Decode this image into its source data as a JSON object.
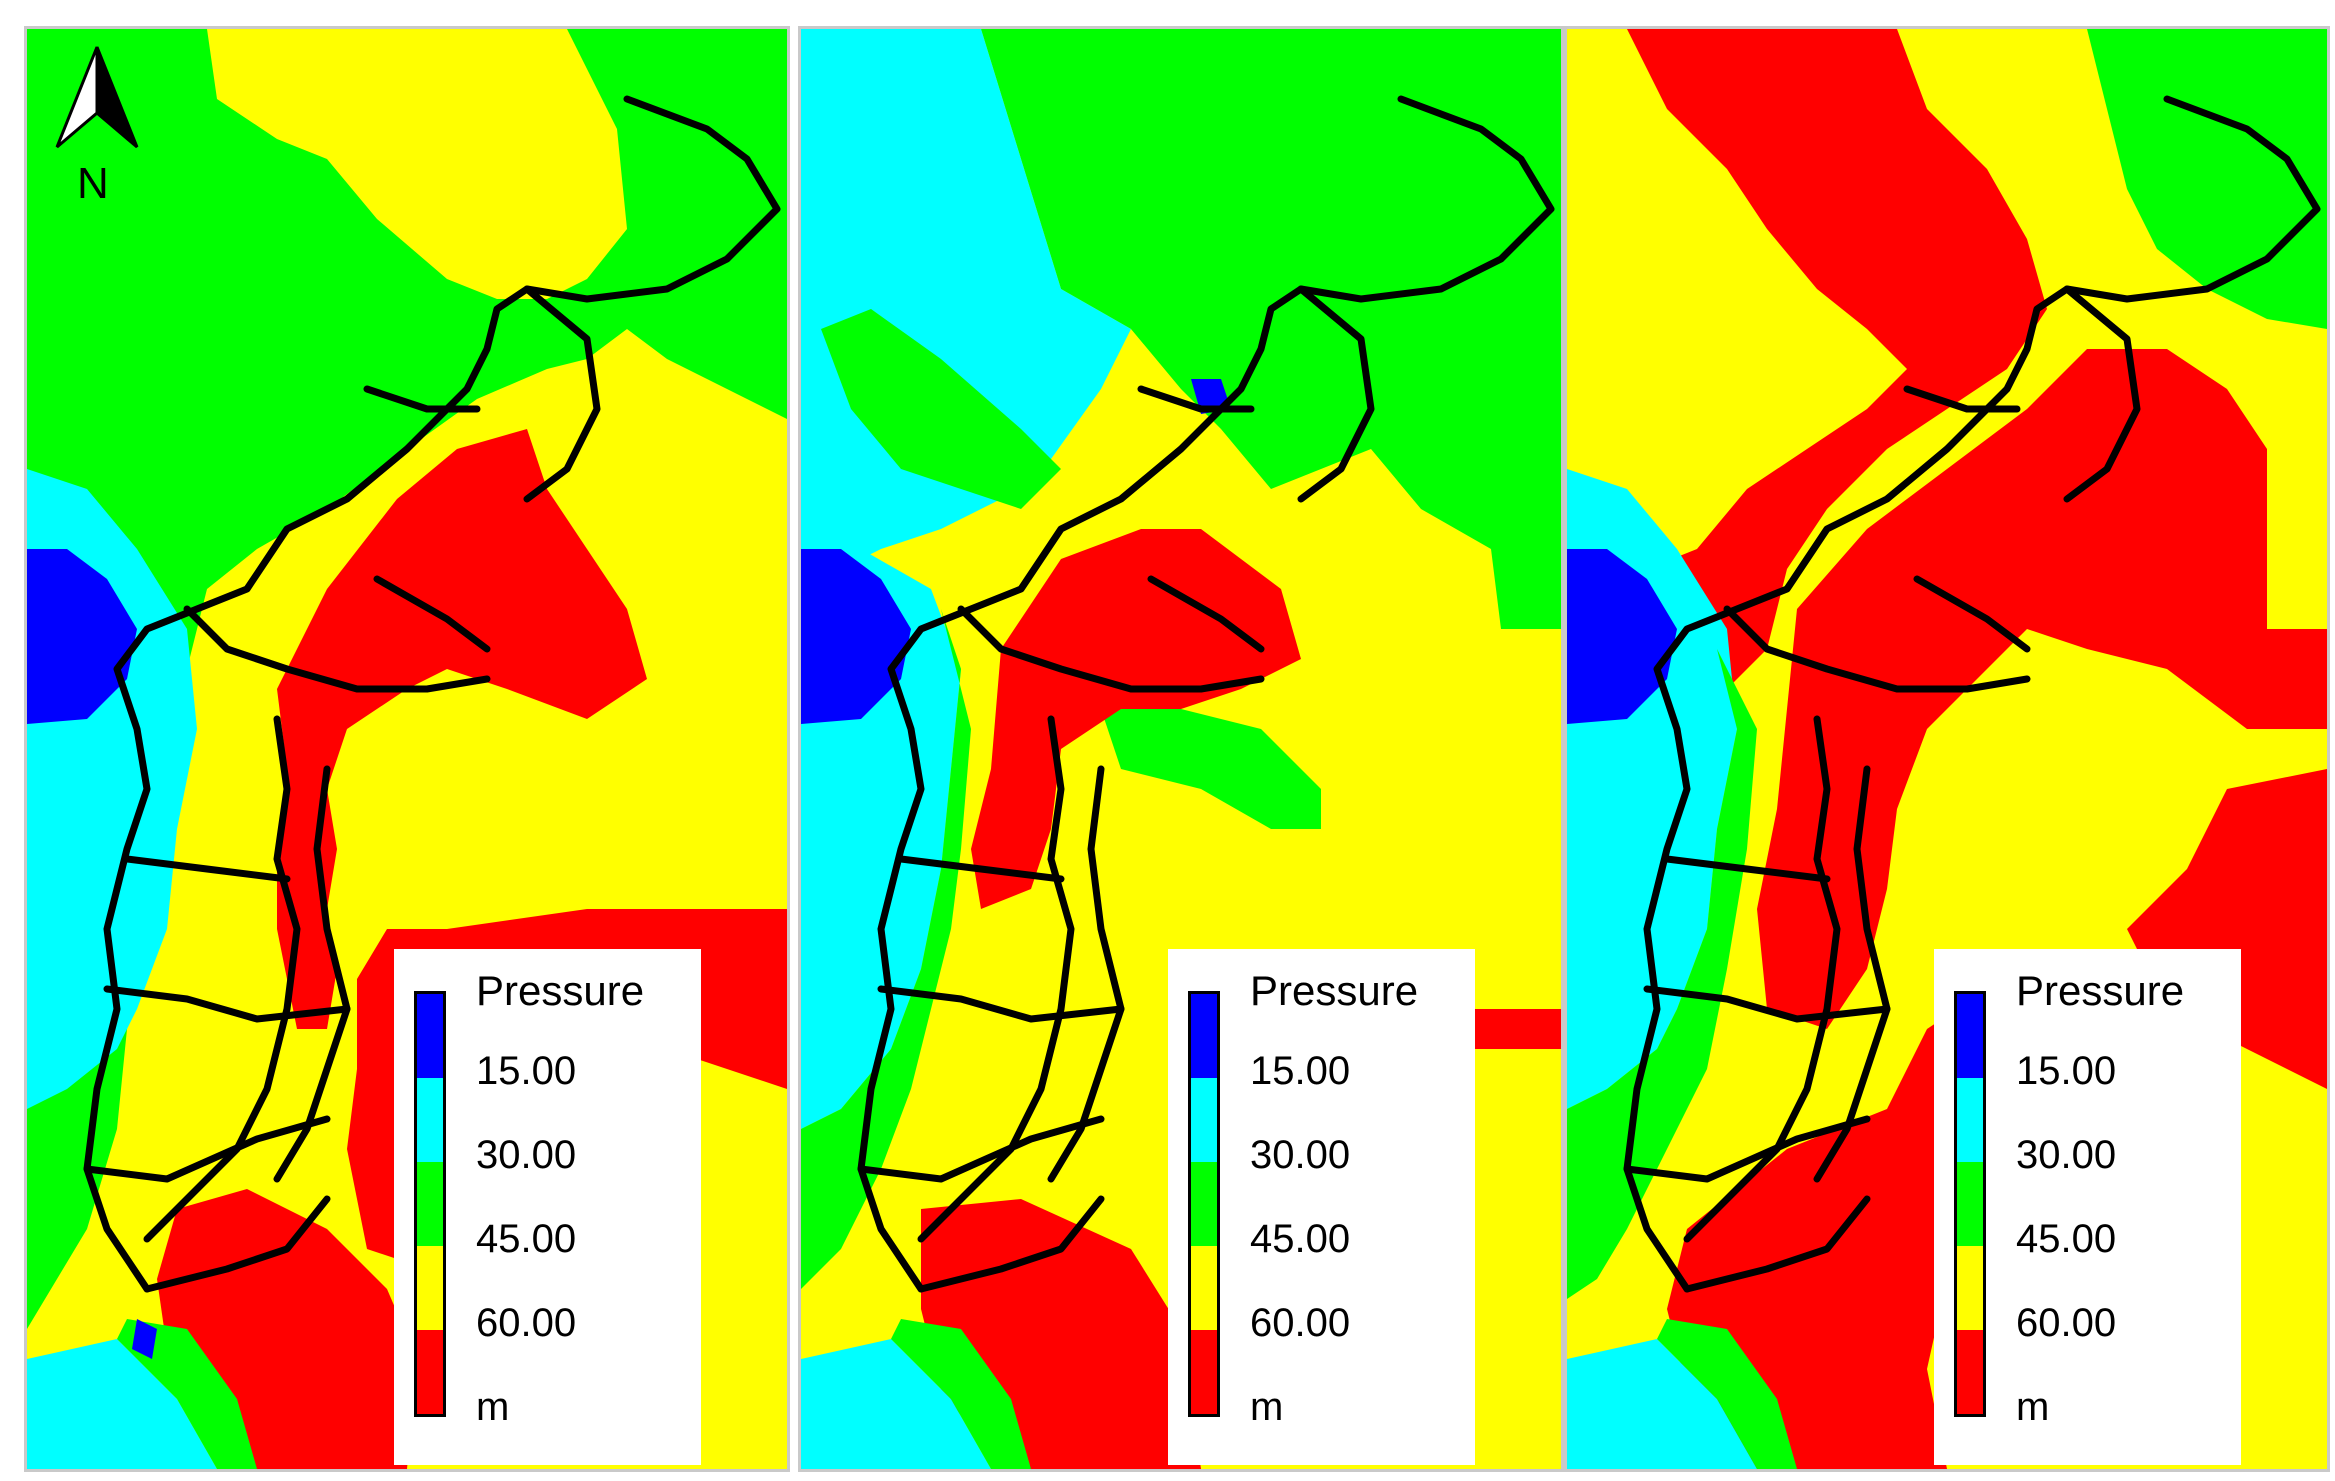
{
  "colors": {
    "band_0": "#0000ff",
    "band_1": "#00ffff",
    "band_2": "#00ff00",
    "band_3": "#ffff00",
    "band_4": "#ff0000",
    "pipes": "#000000"
  },
  "north_arrow": {
    "icon": "north-arrow-icon",
    "letter": "N"
  },
  "legend": {
    "title": "Pressure",
    "unit": "m",
    "breaks": [
      "15.00",
      "30.00",
      "45.00",
      "60.00"
    ]
  },
  "panels": [
    {
      "id": "panel-1",
      "show_north": true
    },
    {
      "id": "panel-2",
      "show_north": false
    },
    {
      "id": "panel-3",
      "show_north": false
    }
  ]
}
